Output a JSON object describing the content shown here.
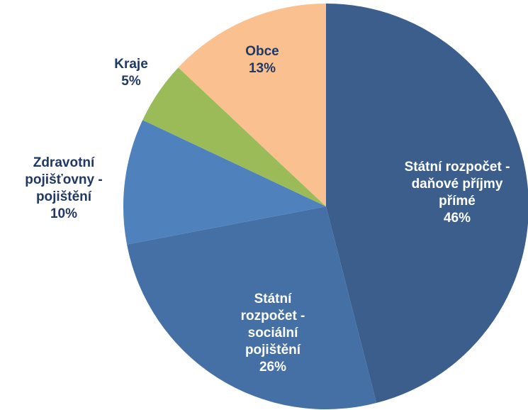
{
  "chart_data": {
    "type": "pie",
    "categories": [
      "Státní rozpočet - daňové příjmy přímé",
      "Státní rozpočet - sociální pojištění",
      "Zdravotní pojišťovny - pojištění",
      "Kraje",
      "Obce"
    ],
    "values": [
      46,
      26,
      10,
      5,
      13
    ],
    "value_labels": [
      "46%",
      "26%",
      "10%",
      "5%",
      "13%"
    ],
    "colors": [
      "#3b5e8c",
      "#4470a6",
      "#4f81bd",
      "#9bbb59",
      "#fac090"
    ]
  }
}
